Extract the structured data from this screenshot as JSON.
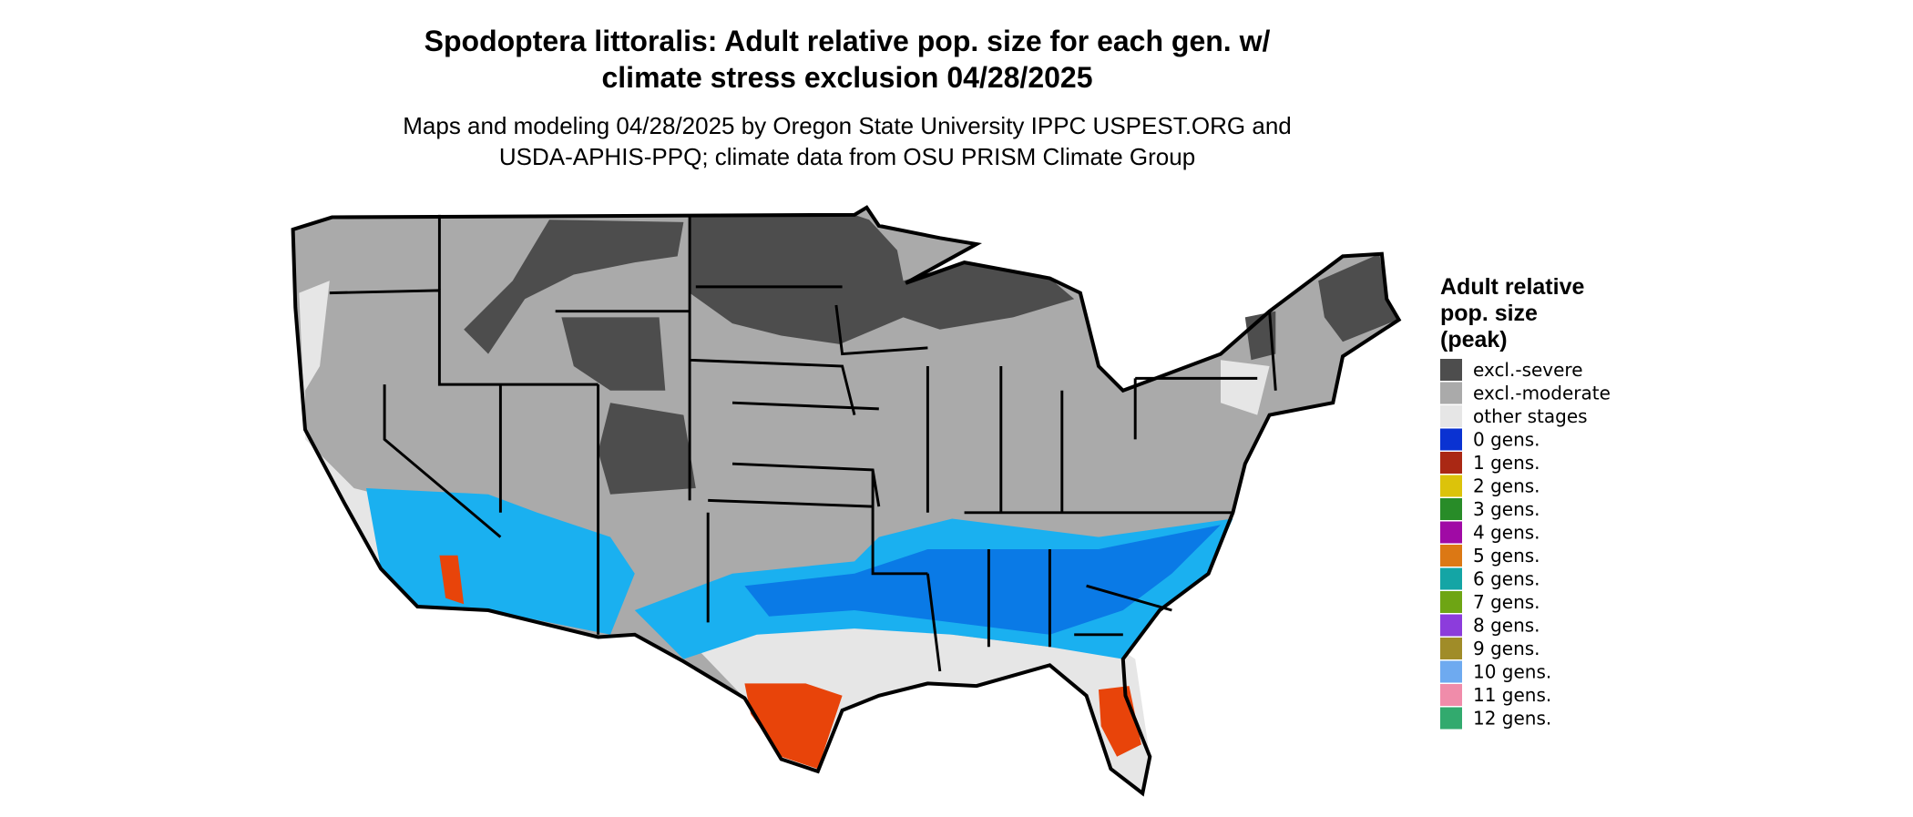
{
  "header": {
    "title_lines": [
      "Spodoptera littoralis: Adult relative pop. size for each gen. w/",
      "climate stress exclusion 04/28/2025"
    ],
    "subtitle_lines": [
      "Maps and modeling 04/28/2025 by Oregon State University IPPC USPEST.ORG and",
      "USDA-APHIS-PPQ; climate data from OSU PRISM Climate Group"
    ]
  },
  "legend": {
    "title_lines": [
      "Adult relative",
      "pop. size",
      "(peak)"
    ],
    "items": [
      {
        "label": "excl.-severe",
        "color": "#4d4d4d"
      },
      {
        "label": "excl.-moderate",
        "color": "#aaaaaa"
      },
      {
        "label": "other stages",
        "color": "#e6e6e6"
      },
      {
        "label": "0 gens.",
        "color": "#0a32d2"
      },
      {
        "label": "1 gens.",
        "color": "#aa2814"
      },
      {
        "label": "2 gens.",
        "color": "#dcc30a"
      },
      {
        "label": "3 gens.",
        "color": "#288c28"
      },
      {
        "label": "4 gens.",
        "color": "#a00aa5"
      },
      {
        "label": "5 gens.",
        "color": "#dc7814"
      },
      {
        "label": "6 gens.",
        "color": "#14a5a5"
      },
      {
        "label": "7 gens.",
        "color": "#6ea514"
      },
      {
        "label": "8 gens.",
        "color": "#8c3cdc"
      },
      {
        "label": "9 gens.",
        "color": "#a08c28"
      },
      {
        "label": "10 gens.",
        "color": "#6eaaf0"
      },
      {
        "label": "11 gens.",
        "color": "#f08caa"
      },
      {
        "label": "12 gens.",
        "color": "#32aa6e"
      }
    ]
  }
}
